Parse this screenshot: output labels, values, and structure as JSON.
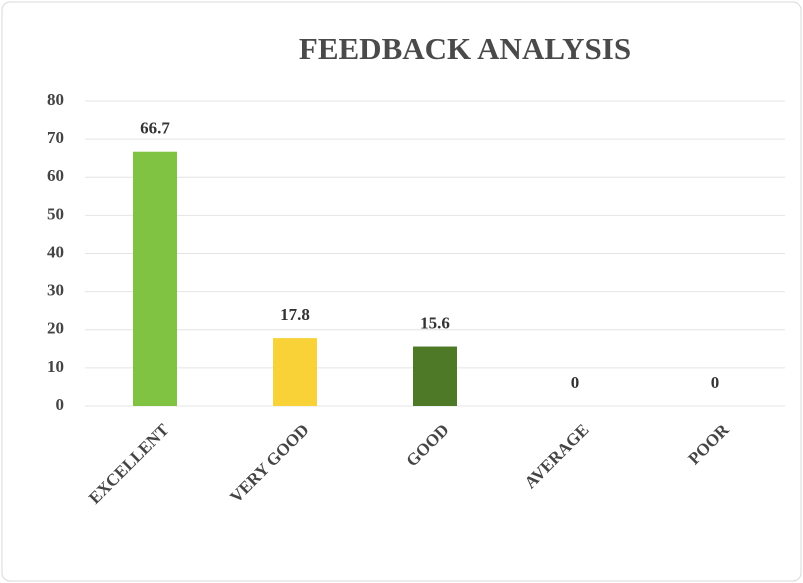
{
  "chart_data": {
    "type": "bar",
    "title": "FEEDBACK ANALYSIS",
    "categories": [
      "EXCELLENT",
      "VERY GOOD",
      "GOOD",
      "AVERAGE",
      "POOR"
    ],
    "values": [
      66.7,
      17.8,
      15.6,
      0,
      0
    ],
    "colors": [
      "#80c342",
      "#f8d236",
      "#4e7a27"
    ],
    "ylim": [
      0,
      80
    ],
    "yticks": [
      0,
      10,
      20,
      30,
      40,
      50,
      60,
      70,
      80
    ],
    "grid": true
  }
}
